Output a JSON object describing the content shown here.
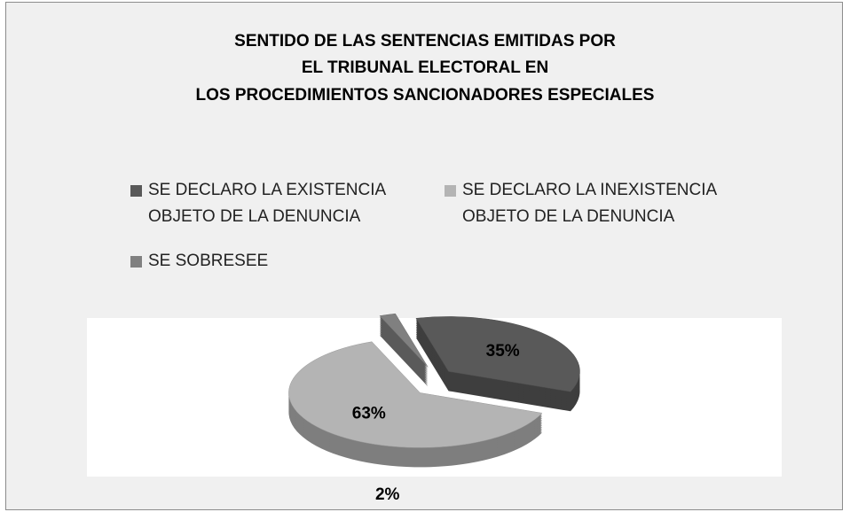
{
  "chart_data": {
    "type": "pie",
    "title": [
      "SENTIDO DE LAS SENTENCIAS EMITIDAS POR",
      "EL TRIBUNAL ELECTORAL EN",
      "LOS PROCEDIMIENTOS SANCIONADORES ESPECIALES"
    ],
    "categories": [
      "SE DECLARO LA EXISTENCIA OBJETO DE LA DENUNCIA",
      "SE DECLARO LA INEXISTENCIA OBJETO DE LA DENUNCIA",
      "SE SOBRESEE"
    ],
    "values": [
      35,
      63,
      2
    ],
    "value_labels": [
      "35%",
      "63%",
      "2%"
    ],
    "colors": [
      "#595959",
      "#b4b4b4",
      "#808080"
    ],
    "legend": "top"
  }
}
